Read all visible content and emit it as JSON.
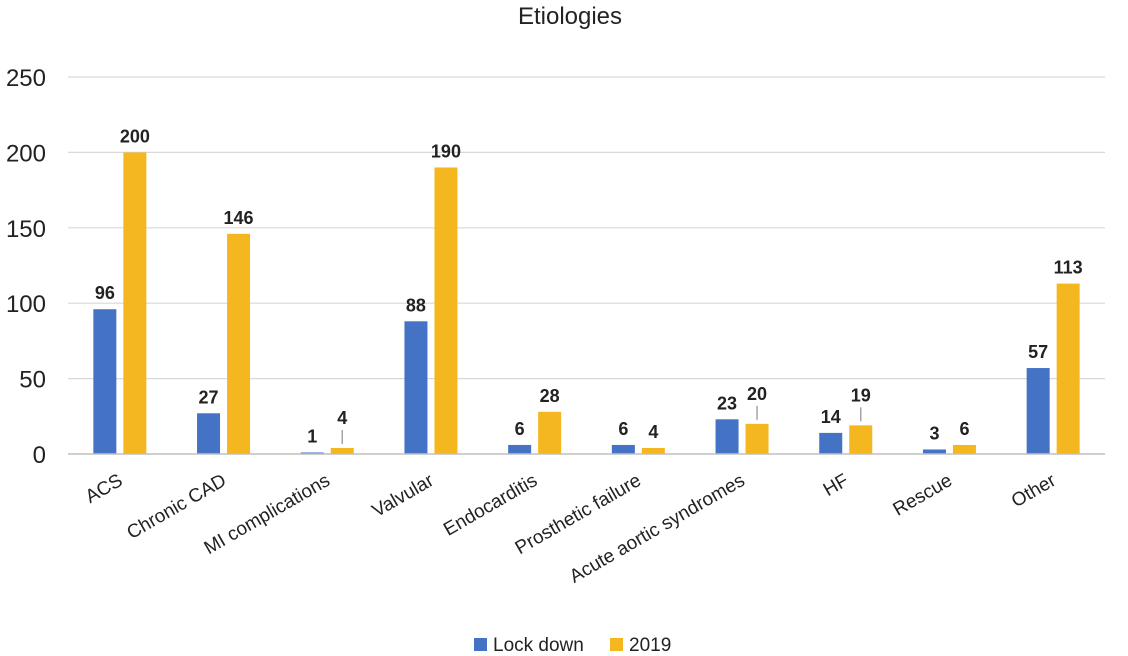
{
  "chart_data": {
    "type": "bar",
    "title": "Etiologies",
    "categories": [
      "ACS",
      "Chronic CAD",
      "MI complications",
      "Valvular",
      "Endocarditis",
      "Prosthetic failure",
      "Acute aortic syndromes",
      "HF",
      "Rescue",
      "Other"
    ],
    "series": [
      {
        "name": "Lock down",
        "color": "#4472c4",
        "values": [
          96,
          27,
          1,
          88,
          6,
          6,
          23,
          14,
          3,
          57
        ]
      },
      {
        "name": "2019",
        "color": "#f5b71f",
        "values": [
          200,
          146,
          4,
          190,
          28,
          4,
          20,
          19,
          6,
          113
        ]
      }
    ],
    "yticks": [
      "0",
      "50",
      "100",
      "150",
      "200",
      "250"
    ],
    "ylim": [
      0,
      250
    ],
    "xlabel": "",
    "ylabel": "",
    "grid": true,
    "legend_position": "bottom-center"
  }
}
